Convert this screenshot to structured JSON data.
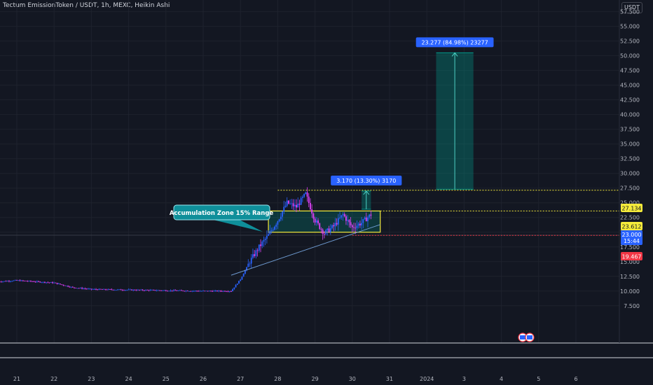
{
  "header": {
    "title": "Tectum EmissionToken / USDT, 1h, MEXC, Heikin Ashi",
    "currency": "USDT"
  },
  "annotations": {
    "zone_label": "Accumulation Zone 15% Range",
    "measure_small": "3.170 (13.30%) 3170",
    "measure_large": "23.277 (84.98%) 23277"
  },
  "price_tags": {
    "upper": "27.134",
    "zone_top": "23.612",
    "current": "23.000",
    "countdown": "15:44",
    "lower": "19.467"
  },
  "colors": {
    "background": "#131722",
    "up": "#2962ff",
    "down": "#e040fb",
    "zone": "#f5eb3b",
    "teal": "#009688",
    "lower_tag": "#f23645",
    "current_tag": "#2962ff"
  },
  "chart_data": {
    "type": "candlestick",
    "style": "Heikin Ashi",
    "symbol": "Tectum EmissionToken / USDT",
    "interval": "1h",
    "exchange": "MEXC",
    "x_tick_labels": [
      "21",
      "22",
      "23",
      "24",
      "25",
      "26",
      "27",
      "28",
      "29",
      "30",
      "31",
      "2024",
      "3",
      "4",
      "5",
      "6"
    ],
    "y_tick_labels": [
      "7.500",
      "10.000",
      "12.500",
      "15.000",
      "17.500",
      "20.000",
      "22.500",
      "25.000",
      "27.500",
      "30.000",
      "32.500",
      "35.000",
      "37.500",
      "40.000",
      "42.500",
      "45.000",
      "47.500",
      "50.000",
      "52.500",
      "55.000",
      "57.500"
    ],
    "ylim": [
      4.5,
      59
    ],
    "price_path": [
      {
        "date": "Dec 20 12:00",
        "price": 11.6
      },
      {
        "date": "Dec 21 00:00",
        "price": 11.8
      },
      {
        "date": "Dec 22 00:00",
        "price": 11.4
      },
      {
        "date": "Dec 22 12:00",
        "price": 10.6
      },
      {
        "date": "Dec 23 00:00",
        "price": 10.3
      },
      {
        "date": "Dec 24 00:00",
        "price": 10.2
      },
      {
        "date": "Dec 25 00:00",
        "price": 10.1
      },
      {
        "date": "Dec 26 00:00",
        "price": 10.0
      },
      {
        "date": "Dec 26 18:00",
        "price": 10.0
      },
      {
        "date": "Dec 27 00:00",
        "price": 12.0
      },
      {
        "date": "Dec 27 06:00",
        "price": 15.0
      },
      {
        "date": "Dec 27 12:00",
        "price": 17.5
      },
      {
        "date": "Dec 27 18:00",
        "price": 19.5
      },
      {
        "date": "Dec 28 00:00",
        "price": 22.0
      },
      {
        "date": "Dec 28 06:00",
        "price": 25.0
      },
      {
        "date": "Dec 28 12:00",
        "price": 24.3
      },
      {
        "date": "Dec 28 18:00",
        "price": 26.5
      },
      {
        "date": "Dec 29 00:00",
        "price": 22.0
      },
      {
        "date": "Dec 29 06:00",
        "price": 19.8
      },
      {
        "date": "Dec 29 12:00",
        "price": 21.0
      },
      {
        "date": "Dec 29 18:00",
        "price": 23.0
      },
      {
        "date": "Dec 30 00:00",
        "price": 20.8
      },
      {
        "date": "Dec 30 06:00",
        "price": 21.6
      },
      {
        "date": "Dec 30 12:00",
        "price": 23.0
      }
    ],
    "horizontal_levels": [
      27.134,
      23.612,
      19.467
    ],
    "current_price": 23.0,
    "accumulation_zone": {
      "from": "Dec 27 18:00",
      "to": "Dec 30 18:00",
      "low": 20.0,
      "high": 23.612
    },
    "trendline": [
      {
        "date": "Dec 26 18:00",
        "price": 12.7
      },
      {
        "date": "Dec 30 18:00",
        "price": 21.3
      }
    ],
    "measures": [
      {
        "from": "Dec 30 06:00",
        "to": "Dec 30 12:00",
        "low": 23.9,
        "high": 27.0
      },
      {
        "from": "Jan 1 06:00",
        "to": "Jan 2 06:00",
        "low": 27.3,
        "high": 50.5
      }
    ]
  }
}
